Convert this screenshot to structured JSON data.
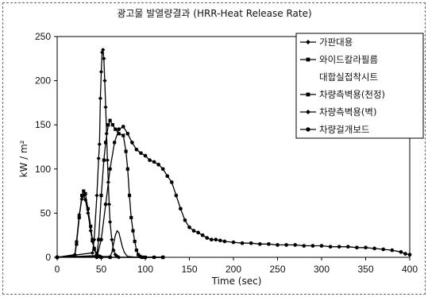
{
  "chart_data": {
    "type": "line",
    "title": "광고물 발열량결과 (HRR-Heat Release Rate)",
    "xlabel": "Time (sec)",
    "ylabel": "kW / m²",
    "xlim": [
      0,
      400
    ],
    "ylim": [
      0,
      250
    ],
    "x_ticks": [
      "0",
      "50",
      "100",
      "150",
      "200",
      "250",
      "300",
      "350",
      "400"
    ],
    "y_ticks": [
      "0",
      "50",
      "100",
      "150",
      "200",
      "250"
    ],
    "grid": false,
    "legend_position": "top-right",
    "series": [
      {
        "name": "가판대용",
        "marker": "diamond",
        "x": [
          0,
          40,
          42,
          45,
          47,
          48,
          49,
          50,
          51,
          52,
          53,
          54,
          55,
          56,
          57,
          58,
          59,
          60,
          62,
          64,
          66,
          68,
          70,
          120
        ],
        "y": [
          0,
          5,
          20,
          70,
          112,
          128,
          180,
          210,
          232,
          235,
          225,
          200,
          170,
          140,
          110,
          85,
          60,
          40,
          20,
          8,
          3,
          1,
          0,
          0
        ]
      },
      {
        "name": "와이드칼라필름",
        "marker": "square",
        "x": [
          0,
          45,
          47,
          50,
          53,
          55,
          58,
          60,
          63,
          66,
          70,
          75,
          78,
          80,
          82,
          84,
          86,
          88,
          90,
          92,
          94,
          96,
          98,
          100,
          110,
          120
        ],
        "y": [
          0,
          2,
          20,
          70,
          110,
          130,
          150,
          155,
          150,
          145,
          140,
          138,
          120,
          100,
          70,
          45,
          30,
          18,
          8,
          3,
          1,
          0,
          0,
          0,
          0,
          0
        ]
      },
      {
        "name": "대합실접착시트",
        "marker": "none",
        "x": [
          0,
          60,
          62,
          64,
          66,
          68,
          70,
          72,
          74,
          76,
          78,
          80,
          85,
          90,
          95,
          100,
          110,
          120
        ],
        "y": [
          0,
          1,
          5,
          15,
          25,
          30,
          28,
          20,
          12,
          6,
          3,
          1,
          0.5,
          0,
          0,
          0,
          0,
          0
        ]
      },
      {
        "name": "차량측벽용(천정)",
        "marker": "square",
        "x": [
          0,
          20,
          22,
          25,
          28,
          30,
          32,
          35,
          38,
          40,
          42,
          45,
          48,
          50,
          60,
          120
        ],
        "y": [
          0,
          2,
          15,
          45,
          70,
          75,
          72,
          55,
          35,
          20,
          10,
          4,
          1,
          0,
          0,
          0
        ]
      },
      {
        "name": "차량측벽용(벽)",
        "marker": "diamond",
        "x": [
          0,
          20,
          22,
          25,
          28,
          30,
          32,
          35,
          38,
          40,
          42,
          45,
          48,
          50,
          60,
          120
        ],
        "y": [
          0,
          3,
          18,
          48,
          66,
          70,
          65,
          50,
          30,
          18,
          9,
          3,
          1,
          0,
          0,
          0
        ]
      },
      {
        "name": "차량걸개보드",
        "marker": "circle",
        "x": [
          0,
          45,
          50,
          55,
          60,
          65,
          70,
          75,
          80,
          85,
          90,
          95,
          100,
          105,
          110,
          115,
          120,
          125,
          130,
          135,
          140,
          145,
          150,
          155,
          160,
          165,
          170,
          175,
          180,
          185,
          190,
          200,
          210,
          220,
          230,
          240,
          250,
          260,
          270,
          280,
          290,
          300,
          310,
          320,
          330,
          340,
          350,
          360,
          370,
          380,
          390,
          395,
          400
        ],
        "y": [
          0,
          0,
          20,
          60,
          100,
          130,
          145,
          148,
          140,
          130,
          122,
          118,
          115,
          110,
          108,
          105,
          100,
          92,
          85,
          70,
          55,
          42,
          34,
          30,
          28,
          25,
          22,
          20,
          20,
          19,
          18,
          17,
          16,
          16,
          15,
          15,
          14,
          14,
          14,
          13,
          13,
          13,
          12,
          12,
          12,
          11,
          11,
          10,
          9,
          8,
          6,
          4,
          3
        ]
      }
    ]
  }
}
